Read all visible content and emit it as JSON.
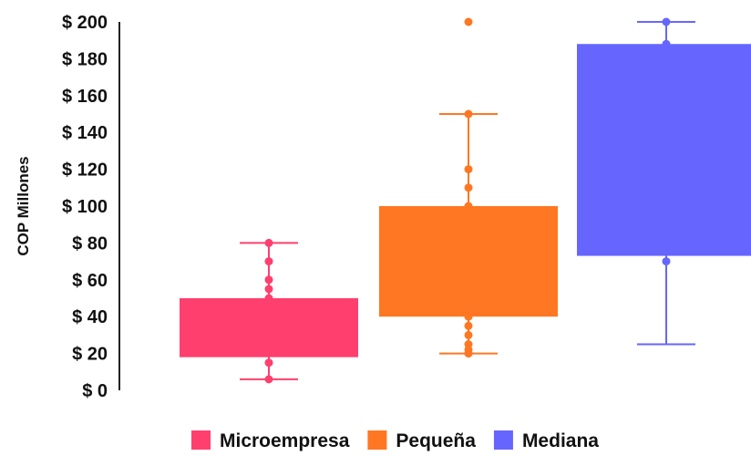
{
  "chart_data": {
    "type": "box",
    "title": "",
    "xlabel": "",
    "ylabel": "COP Millones",
    "ylim": [
      0,
      200
    ],
    "y_ticks": [
      0,
      20,
      40,
      60,
      80,
      100,
      120,
      140,
      160,
      180,
      200
    ],
    "y_tick_labels": [
      "$ 0",
      "$ 20",
      "$ 40",
      "$ 60",
      "$ 80",
      "$ 100",
      "$ 120",
      "$ 140",
      "$ 160",
      "$ 180",
      "$ 200"
    ],
    "grid": false,
    "legend_position": "bottom",
    "series": [
      {
        "name": "Microempresa",
        "color": "#FF3F6E",
        "whisker_low": 6,
        "q1": 18,
        "median": 50,
        "q3": 50,
        "whisker_high": 80,
        "points": [
          6,
          15,
          50,
          55,
          60,
          70,
          80
        ]
      },
      {
        "name": "Pequeña",
        "color": "#FF7722",
        "whisker_low": 20,
        "q1": 40,
        "median": 100,
        "q3": 100,
        "whisker_high": 150,
        "points": [
          20,
          22,
          25,
          30,
          35,
          40,
          100,
          110,
          120,
          150,
          200
        ]
      },
      {
        "name": "Mediana",
        "color": "#6666FF",
        "whisker_low": 25,
        "q1": 73,
        "median": 188,
        "q3": 188,
        "whisker_high": 200,
        "points": [
          70,
          188,
          200
        ]
      }
    ]
  }
}
